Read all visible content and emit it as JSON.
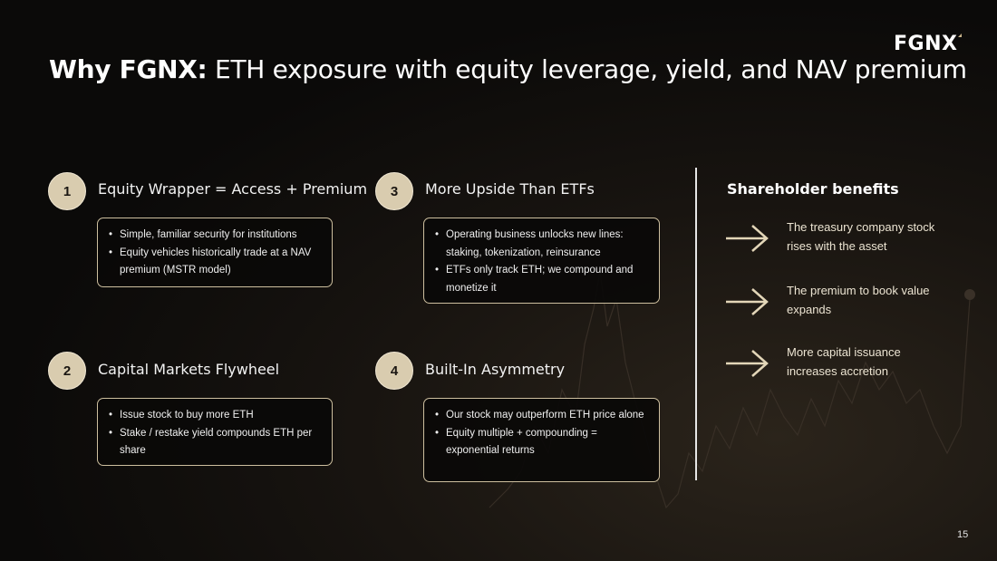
{
  "logo": {
    "text": "FGNX"
  },
  "title": {
    "bold": "Why FGNX:",
    "rest": " ETH exposure with equity leverage, yield, and NAV premium"
  },
  "sections": [
    {
      "number": "1",
      "heading": "Equity Wrapper = Access + Premium",
      "bullets": [
        "Simple, familiar security for institutions",
        "Equity vehicles historically trade at a NAV premium (MSTR model)"
      ]
    },
    {
      "number": "2",
      "heading": "Capital Markets Flywheel",
      "bullets": [
        "Issue stock to buy more ETH",
        "Stake / restake yield compounds ETH per share"
      ]
    },
    {
      "number": "3",
      "heading": "More Upside Than ETFs",
      "bullets": [
        "Operating business unlocks new lines: staking, tokenization, reinsurance",
        "ETFs only track ETH; we compound and monetize it"
      ]
    },
    {
      "number": "4",
      "heading": "Built-In Asymmetry",
      "bullets": [
        "Our stock may outperform ETH price alone",
        "Equity multiple + compounding = exponential returns"
      ]
    }
  ],
  "shareholder": {
    "title": "Shareholder benefits",
    "items": [
      {
        "text": "The treasury company stock rises with the asset",
        "icon": "arrow-right-icon"
      },
      {
        "text": "The premium to book value expands",
        "icon": "arrow-right-icon"
      },
      {
        "text": "More capital issuance increases accretion",
        "icon": "arrow-right-icon"
      }
    ]
  },
  "page_number": "15",
  "colors": {
    "background": "#0b0a09",
    "accent": "#d9ccaf",
    "box_border": "#cdbf9f",
    "arrow": "#e3d6b8"
  }
}
